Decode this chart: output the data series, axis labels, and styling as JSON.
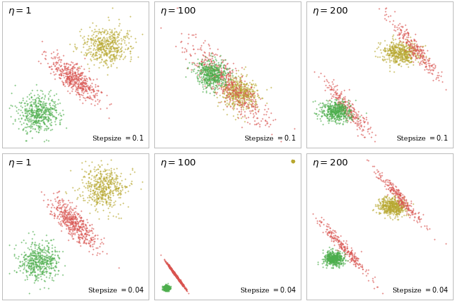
{
  "colors": {
    "red": "#d9534f",
    "green": "#4cae4c",
    "gold": "#b8a830"
  },
  "n_points": 500,
  "seed": 42,
  "background": "#ffffff",
  "border_color": "#bbbbbb",
  "panels": [
    {
      "row": 0,
      "col": 0,
      "eta": 1,
      "stepsize": "0.1"
    },
    {
      "row": 0,
      "col": 1,
      "eta": 100,
      "stepsize": "0.1"
    },
    {
      "row": 0,
      "col": 2,
      "eta": 200,
      "stepsize": "0.1"
    },
    {
      "row": 1,
      "col": 0,
      "eta": 1,
      "stepsize": "0.04"
    },
    {
      "row": 1,
      "col": 1,
      "eta": 100,
      "stepsize": "0.04"
    },
    {
      "row": 1,
      "col": 2,
      "eta": 200,
      "stepsize": "0.04"
    }
  ]
}
